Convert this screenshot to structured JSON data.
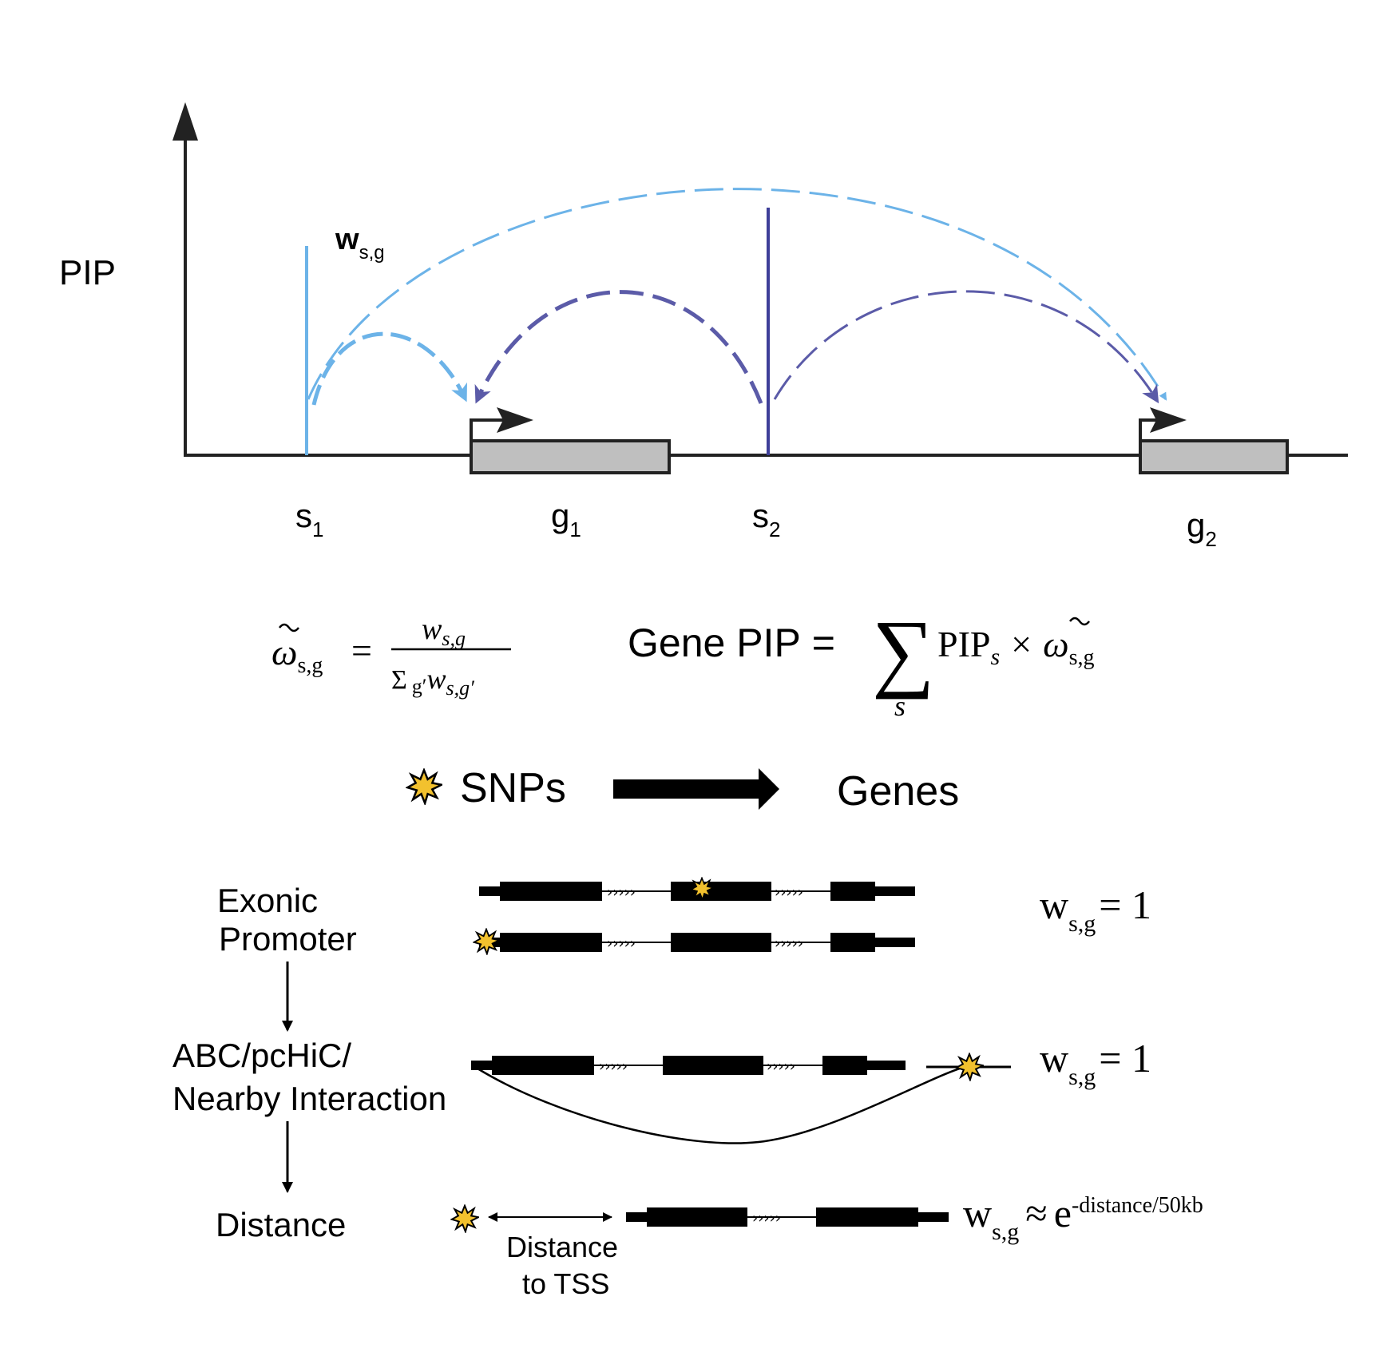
{
  "colors": {
    "light_blue": "#6CB3E8",
    "dark_blue": "#3E3F99",
    "dashed_purple": "#5B5BA8",
    "gene_box": "#BFBFBF",
    "snp_star": "#F2C12E",
    "ink": "#000000"
  },
  "top": {
    "y_axis_label": "PIP",
    "weight_label_main": "w",
    "weight_label_sub": "s,g",
    "snp1_main": "s",
    "snp1_sub": "1",
    "gene1_main": "g",
    "gene1_sub": "1",
    "snp2_main": "s",
    "snp2_sub": "2",
    "gene2_main": "g",
    "gene2_sub": "2"
  },
  "formulas": {
    "omega": "ω",
    "omega_sub": "s,g",
    "equals": "=",
    "numerator_main": "w",
    "numerator_sub": "s,g",
    "denominator_sigma": "Σ",
    "denominator_g": "g′",
    "denominator_main": "w",
    "denominator_sub": "s,g′",
    "gene_pip_label": "Gene PIP",
    "sum_symbol": "∑",
    "sum_index": "s",
    "pip_main": "PIP",
    "pip_sub": "s",
    "times": "×"
  },
  "flow": {
    "left": "SNPs",
    "right": "Genes"
  },
  "categories": {
    "line1": "Exonic",
    "line2": "Promoter",
    "abc_line1": "ABC/pcHiC/",
    "abc_line2": "Nearby Interaction",
    "distance": "Distance",
    "distance_caption_1": "Distance",
    "distance_caption_2": "to TSS"
  },
  "weights": {
    "w_main": "w",
    "w_sub": "s,g",
    "equals_one": "= 1",
    "approx": "≈",
    "e_base": "e",
    "exponent": "-distance/50kb"
  }
}
